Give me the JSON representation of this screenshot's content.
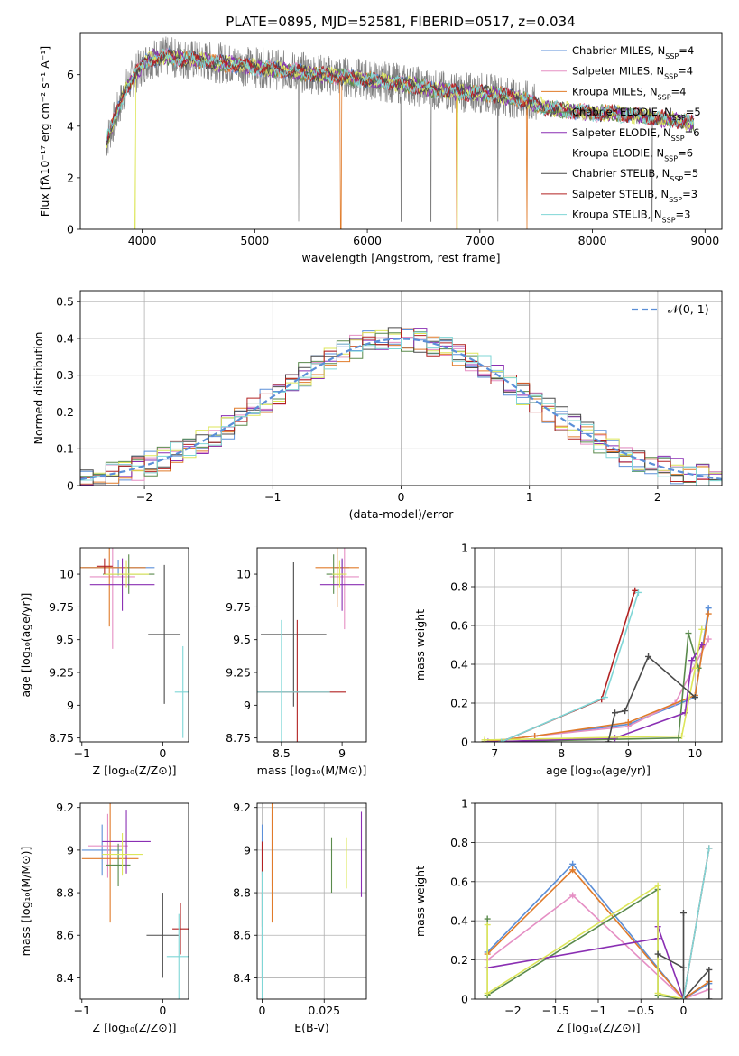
{
  "figure": {
    "title": "PLATE=0895, MJD=52581, FIBERID=0517, z=0.034"
  },
  "colors": {
    "Chabrier MILES": "#5b8fd8",
    "Salpeter MILES": "#e58fc4",
    "Kroupa MILES": "#e07b2a",
    "Chabrier ELODIE": "#5a8a4c",
    "Salpeter ELODIE": "#8a2fb3",
    "Kroupa ELODIE": "#dde65a",
    "Chabrier STELIB": "#4a4a4a",
    "Salpeter STELIB": "#b22222",
    "Kroupa STELIB": "#7fd6d6",
    "data": "#808080",
    "normal": "#5b8fd8",
    "grid": "#b0b0b0"
  },
  "chart_data": [
    {
      "id": "spectrum",
      "type": "line",
      "title": "PLATE=0895, MJD=52581, FIBERID=0517, z=0.034",
      "xlabel": "wavelength [Angstrom, rest frame]",
      "ylabel": "Flux [fλ10⁻¹⁷ erg cm⁻² s⁻¹ A⁻¹]",
      "xlim": [
        3450,
        9150
      ],
      "ylim": [
        0,
        7.6
      ],
      "xticks": [
        4000,
        5000,
        6000,
        7000,
        8000,
        9000
      ],
      "yticks": [
        0,
        2,
        4,
        6
      ],
      "grid": false,
      "legend_position": "top-right",
      "legend": [
        {
          "label": "Chabrier MILES, N",
          "sub": "SSP",
          "suffix": "=4",
          "color_key": "Chabrier MILES"
        },
        {
          "label": "Salpeter MILES, N",
          "sub": "SSP",
          "suffix": "=4",
          "color_key": "Salpeter MILES"
        },
        {
          "label": "Kroupa MILES, N",
          "sub": "SSP",
          "suffix": "=4",
          "color_key": "Kroupa MILES"
        },
        {
          "label": "Chabrier ELODIE, N",
          "sub": "SSP",
          "suffix": "=5",
          "color_key": "Chabrier ELODIE"
        },
        {
          "label": "Salpeter ELODIE, N",
          "sub": "SSP",
          "suffix": "=6",
          "color_key": "Salpeter ELODIE"
        },
        {
          "label": "Kroupa ELODIE, N",
          "sub": "SSP",
          "suffix": "=6",
          "color_key": "Kroupa ELODIE"
        },
        {
          "label": "Chabrier STELIB, N",
          "sub": "SSP",
          "suffix": "=5",
          "color_key": "Chabrier STELIB"
        },
        {
          "label": "Salpeter STELIB, N",
          "sub": "SSP",
          "suffix": "=3",
          "color_key": "Salpeter STELIB"
        },
        {
          "label": "Kroupa STELIB, N",
          "sub": "SSP",
          "suffix": "=3",
          "color_key": "Kroupa STELIB"
        }
      ],
      "continuum": {
        "x": [
          3680,
          3750,
          3850,
          3950,
          4050,
          4200,
          4400,
          4600,
          4800,
          5000,
          5200,
          5400,
          5600,
          5800,
          6000,
          6200,
          6400,
          6600,
          6800,
          7000,
          7200,
          7400,
          7600,
          7800,
          8000,
          8200,
          8400,
          8600,
          8800,
          8900
        ],
        "y": [
          3.4,
          4.2,
          5.4,
          6.1,
          6.6,
          6.7,
          6.6,
          6.5,
          6.4,
          6.3,
          6.2,
          6.1,
          6.0,
          5.9,
          5.8,
          5.7,
          5.6,
          5.4,
          5.3,
          5.3,
          5.2,
          5.0,
          4.7,
          4.6,
          4.5,
          4.5,
          4.4,
          4.3,
          4.2,
          4.1
        ]
      },
      "model_dropouts": [
        {
          "model": "Kroupa MILES",
          "x": 5765
        },
        {
          "model": "Kroupa MILES",
          "x": 6795
        },
        {
          "model": "Kroupa MILES",
          "x": 7420
        },
        {
          "model": "Kroupa ELODIE",
          "x": 3935
        },
        {
          "model": "Kroupa ELODIE",
          "x": 6800
        }
      ],
      "data_dropouts": [
        5390,
        6300,
        6565,
        7160,
        8530
      ]
    },
    {
      "id": "residuals",
      "type": "step",
      "xlabel": "(data-model)/error",
      "ylabel": "Normed distribution",
      "xlim": [
        -2.5,
        2.5
      ],
      "ylim": [
        0,
        0.53
      ],
      "xticks": [
        -2,
        -1,
        0,
        1,
        2
      ],
      "yticks": [
        0.0,
        0.1,
        0.2,
        0.3,
        0.4,
        0.5
      ],
      "grid": true,
      "legend_position": "top-right",
      "legend": [
        {
          "label": "𝒩(0, 1)",
          "color_key": "normal",
          "dashed": true
        }
      ],
      "bin_width": 0.1
    },
    {
      "id": "age_vs_Z",
      "type": "errorbar",
      "xlabel": "Z [log₁₀(Z/Z⊙)]",
      "ylabel": "age  [log₁₀(age/yr)]",
      "xlim": [
        -1.02,
        0.32
      ],
      "ylim": [
        8.72,
        10.2
      ],
      "xticks": [
        -1,
        0
      ],
      "yticks": [
        8.75,
        9.0,
        9.25,
        9.5,
        9.75,
        10.0
      ],
      "grid": false,
      "points": [
        {
          "model": "Chabrier MILES",
          "x": -0.55,
          "xerr": 0.45,
          "y": 10.05,
          "yerr": 0.06
        },
        {
          "model": "Salpeter MILES",
          "x": -0.62,
          "xerr": 0.28,
          "y": 9.98,
          "yerr": 0.55
        },
        {
          "model": "Kroupa MILES",
          "x": -0.66,
          "xerr": 0.45,
          "y": 10.05,
          "yerr": 0.45
        },
        {
          "model": "Chabrier ELODIE",
          "x": -0.42,
          "xerr": 0.32,
          "y": 10.0,
          "yerr": 0.15
        },
        {
          "model": "Salpeter ELODIE",
          "x": -0.5,
          "xerr": 0.4,
          "y": 9.92,
          "yerr": 0.2
        },
        {
          "model": "Kroupa ELODIE",
          "x": -0.45,
          "xerr": 0.28,
          "y": 10.0,
          "yerr": 0.1
        },
        {
          "model": "Chabrier STELIB",
          "x": 0.02,
          "xerr": 0.2,
          "y": 9.54,
          "yerr": 0.53
        },
        {
          "model": "Salpeter STELIB",
          "x": -0.72,
          "xerr": 0.1,
          "y": 10.06,
          "yerr": 0.06
        },
        {
          "model": "Kroupa STELIB",
          "x": 0.25,
          "xerr": 0.1,
          "y": 9.1,
          "yerr": 0.35
        }
      ]
    },
    {
      "id": "age_vs_mass",
      "type": "errorbar",
      "xlabel": "mass [log₁₀(M/M⊙)]",
      "ylabel": "",
      "xlim": [
        8.3,
        9.2
      ],
      "ylim": [
        8.72,
        10.2
      ],
      "xticks": [
        8.5,
        9.0
      ],
      "yticks": [
        8.75,
        9.0,
        9.25,
        9.5,
        9.75,
        10.0
      ],
      "grid": false,
      "points": [
        {
          "model": "Chabrier MILES",
          "x": 9.0,
          "xerr": 0.06,
          "y": 10.05,
          "yerr": 0.06
        },
        {
          "model": "Salpeter MILES",
          "x": 9.02,
          "xerr": 0.12,
          "y": 9.98,
          "yerr": 0.4
        },
        {
          "model": "Kroupa MILES",
          "x": 8.96,
          "xerr": 0.18,
          "y": 10.05,
          "yerr": 0.3
        },
        {
          "model": "Chabrier ELODIE",
          "x": 8.93,
          "xerr": 0.06,
          "y": 10.0,
          "yerr": 0.15
        },
        {
          "model": "Salpeter ELODIE",
          "x": 9.0,
          "xerr": 0.18,
          "y": 9.92,
          "yerr": 0.2
        },
        {
          "model": "Kroupa ELODIE",
          "x": 8.98,
          "xerr": 0.06,
          "y": 10.0,
          "yerr": 0.1
        },
        {
          "model": "Chabrier STELIB",
          "x": 8.6,
          "xerr": 0.27,
          "y": 9.54,
          "yerr": 0.55
        },
        {
          "model": "Salpeter STELIB",
          "x": 8.63,
          "xerr": 0.4,
          "y": 9.1,
          "yerr": 0.55
        },
        {
          "model": "Kroupa STELIB",
          "x": 8.5,
          "xerr": 0.4,
          "y": 9.1,
          "yerr": 0.55
        }
      ]
    },
    {
      "id": "weight_vs_age",
      "type": "line",
      "xlabel": "age  [log₁₀(age/yr)]",
      "ylabel": "mass weight",
      "xlim": [
        6.7,
        10.4
      ],
      "ylim": [
        0,
        1.0
      ],
      "xticks": [
        7,
        8,
        9,
        10
      ],
      "yticks": [
        0.0,
        0.2,
        0.4,
        0.6,
        0.8,
        1.0
      ],
      "grid": true,
      "series": [
        {
          "model": "Chabrier MILES",
          "x": [
            6.85,
            7.6,
            9.0,
            10.0,
            10.2
          ],
          "y": [
            0.0,
            0.03,
            0.09,
            0.23,
            0.69
          ]
        },
        {
          "model": "Salpeter MILES",
          "x": [
            6.85,
            7.6,
            9.0,
            9.7,
            10.2
          ],
          "y": [
            0.0,
            0.03,
            0.08,
            0.2,
            0.53
          ]
        },
        {
          "model": "Kroupa MILES",
          "x": [
            6.85,
            7.6,
            9.0,
            10.0,
            10.2
          ],
          "y": [
            0.0,
            0.03,
            0.1,
            0.24,
            0.66
          ]
        },
        {
          "model": "Chabrier ELODIE",
          "x": [
            6.85,
            9.75,
            9.9,
            10.05
          ],
          "y": [
            0.0,
            0.02,
            0.56,
            0.38
          ]
        },
        {
          "model": "Salpeter ELODIE",
          "x": [
            6.9,
            8.8,
            9.85,
            9.95,
            10.1
          ],
          "y": [
            0.0,
            0.02,
            0.15,
            0.42,
            0.5
          ]
        },
        {
          "model": "Kroupa ELODIE",
          "x": [
            6.85,
            9.8,
            10.0,
            10.1
          ],
          "y": [
            0.01,
            0.03,
            0.38,
            0.58
          ]
        },
        {
          "model": "Chabrier STELIB",
          "x": [
            8.7,
            8.8,
            8.95,
            9.3,
            10.0
          ],
          "y": [
            0.0,
            0.15,
            0.16,
            0.44,
            0.23
          ]
        },
        {
          "model": "Salpeter STELIB",
          "x": [
            7.1,
            8.6,
            9.1
          ],
          "y": [
            0.0,
            0.22,
            0.78
          ]
        },
        {
          "model": "Kroupa STELIB",
          "x": [
            7.1,
            8.65,
            9.15
          ],
          "y": [
            0.0,
            0.23,
            0.77
          ]
        }
      ]
    },
    {
      "id": "mass_vs_Z",
      "type": "errorbar",
      "xlabel": "Z [log₁₀(Z/Z⊙)]",
      "ylabel": "mass [log₁₀(M/M⊙)]",
      "xlim": [
        -1.02,
        0.32
      ],
      "ylim": [
        8.3,
        9.22
      ],
      "xticks": [
        -1,
        0
      ],
      "yticks": [
        8.4,
        8.6,
        8.8,
        9.0,
        9.2
      ],
      "grid": false,
      "points": [
        {
          "model": "Chabrier MILES",
          "x": -0.75,
          "xerr": 0.25,
          "y": 9.0,
          "yerr": 0.12
        },
        {
          "model": "Salpeter MILES",
          "x": -0.68,
          "xerr": 0.25,
          "y": 9.02,
          "yerr": 0.15
        },
        {
          "model": "Kroupa MILES",
          "x": -0.65,
          "xerr": 0.35,
          "y": 8.96,
          "yerr": 0.3
        },
        {
          "model": "Chabrier ELODIE",
          "x": -0.55,
          "xerr": 0.15,
          "y": 8.93,
          "yerr": 0.1
        },
        {
          "model": "Salpeter ELODIE",
          "x": -0.45,
          "xerr": 0.3,
          "y": 9.04,
          "yerr": 0.15
        },
        {
          "model": "Kroupa ELODIE",
          "x": -0.5,
          "xerr": 0.25,
          "y": 8.98,
          "yerr": 0.1
        },
        {
          "model": "Chabrier STELIB",
          "x": 0.0,
          "xerr": 0.2,
          "y": 8.6,
          "yerr": 0.2
        },
        {
          "model": "Salpeter STELIB",
          "x": 0.22,
          "xerr": 0.1,
          "y": 8.63,
          "yerr": 0.12
        },
        {
          "model": "Kroupa STELIB",
          "x": 0.2,
          "xerr": 0.15,
          "y": 8.5,
          "yerr": 0.2
        }
      ]
    },
    {
      "id": "mass_vs_EBV",
      "type": "errorbar",
      "xlabel": "E(B-V)",
      "ylabel": "",
      "xlim": [
        -0.002,
        0.042
      ],
      "ylim": [
        8.3,
        9.22
      ],
      "xticks": [
        0.0,
        0.025
      ],
      "yticks": [
        8.4,
        8.6,
        8.8,
        9.0,
        9.2
      ],
      "grid": true,
      "points": [
        {
          "model": "Chabrier MILES",
          "x": 0.0,
          "xerr": 0,
          "y": 9.0,
          "yerr": 0.12
        },
        {
          "model": "Salpeter MILES",
          "x": 0.004,
          "xerr": 0,
          "y": 9.0,
          "yerr": 0.17
        },
        {
          "model": "Kroupa MILES",
          "x": 0.004,
          "xerr": 0,
          "y": 8.96,
          "yerr": 0.3
        },
        {
          "model": "Chabrier ELODIE",
          "x": 0.028,
          "xerr": 0,
          "y": 8.93,
          "yerr": 0.13
        },
        {
          "model": "Salpeter ELODIE",
          "x": 0.04,
          "xerr": 0,
          "y": 8.98,
          "yerr": 0.2
        },
        {
          "model": "Kroupa ELODIE",
          "x": 0.034,
          "xerr": 0,
          "y": 8.94,
          "yerr": 0.12
        },
        {
          "model": "Chabrier STELIB",
          "x": 0.0,
          "xerr": 0,
          "y": 8.6,
          "yerr": 0.2
        },
        {
          "model": "Salpeter STELIB",
          "x": 0.0,
          "xerr": 0,
          "y": 8.84,
          "yerr": 0.2
        },
        {
          "model": "Kroupa STELIB",
          "x": 0.0,
          "xerr": 0,
          "y": 8.6,
          "yerr": 0.3
        }
      ]
    },
    {
      "id": "weight_vs_Z",
      "type": "line",
      "xlabel": "Z [log₁₀(Z/Z⊙)]",
      "ylabel": "mass weight",
      "xlim": [
        -2.45,
        0.45
      ],
      "ylim": [
        0,
        1.0
      ],
      "xticks": [
        -2.0,
        -1.5,
        -1.0,
        -0.5,
        0.0
      ],
      "yticks": [
        0.0,
        0.2,
        0.4,
        0.6,
        0.8,
        1.0
      ],
      "grid": true,
      "series": [
        {
          "model": "Chabrier MILES",
          "x": [
            -2.3,
            -1.3,
            0.0,
            0.3
          ],
          "y": [
            0.24,
            0.69,
            0.0,
            0.08
          ]
        },
        {
          "model": "Salpeter MILES",
          "x": [
            -2.3,
            -1.3,
            0.0,
            0.3
          ],
          "y": [
            0.2,
            0.53,
            0.0,
            0.05
          ]
        },
        {
          "model": "Kroupa MILES",
          "x": [
            -2.3,
            -1.3,
            0.0,
            0.3
          ],
          "y": [
            0.23,
            0.66,
            0.0,
            0.09
          ]
        },
        {
          "model": "Chabrier ELODIE",
          "x": [
            -2.3,
            -2.3,
            -0.3,
            -0.3,
            0.0
          ],
          "y": [
            0.41,
            0.02,
            0.56,
            0.02,
            0.0
          ]
        },
        {
          "model": "Salpeter ELODIE",
          "x": [
            -2.3,
            -0.3,
            -0.3,
            0.0
          ],
          "y": [
            0.16,
            0.31,
            0.37,
            0.0
          ]
        },
        {
          "model": "Kroupa ELODIE",
          "x": [
            -2.3,
            -2.3,
            -0.3,
            -0.3,
            0.0
          ],
          "y": [
            0.38,
            0.03,
            0.58,
            0.03,
            0.0
          ]
        },
        {
          "model": "Chabrier STELIB",
          "x": [
            -0.3,
            0.0,
            0.0,
            0.0,
            0.3,
            0.3
          ],
          "y": [
            0.23,
            0.16,
            0.44,
            0.0,
            0.15,
            0.0
          ]
        },
        {
          "model": "Salpeter STELIB",
          "x": [
            0.0,
            0.3
          ],
          "y": [
            0.0,
            0.77
          ]
        },
        {
          "model": "Kroupa STELIB",
          "x": [
            0.0,
            0.3
          ],
          "y": [
            0.0,
            0.77
          ]
        }
      ]
    }
  ]
}
